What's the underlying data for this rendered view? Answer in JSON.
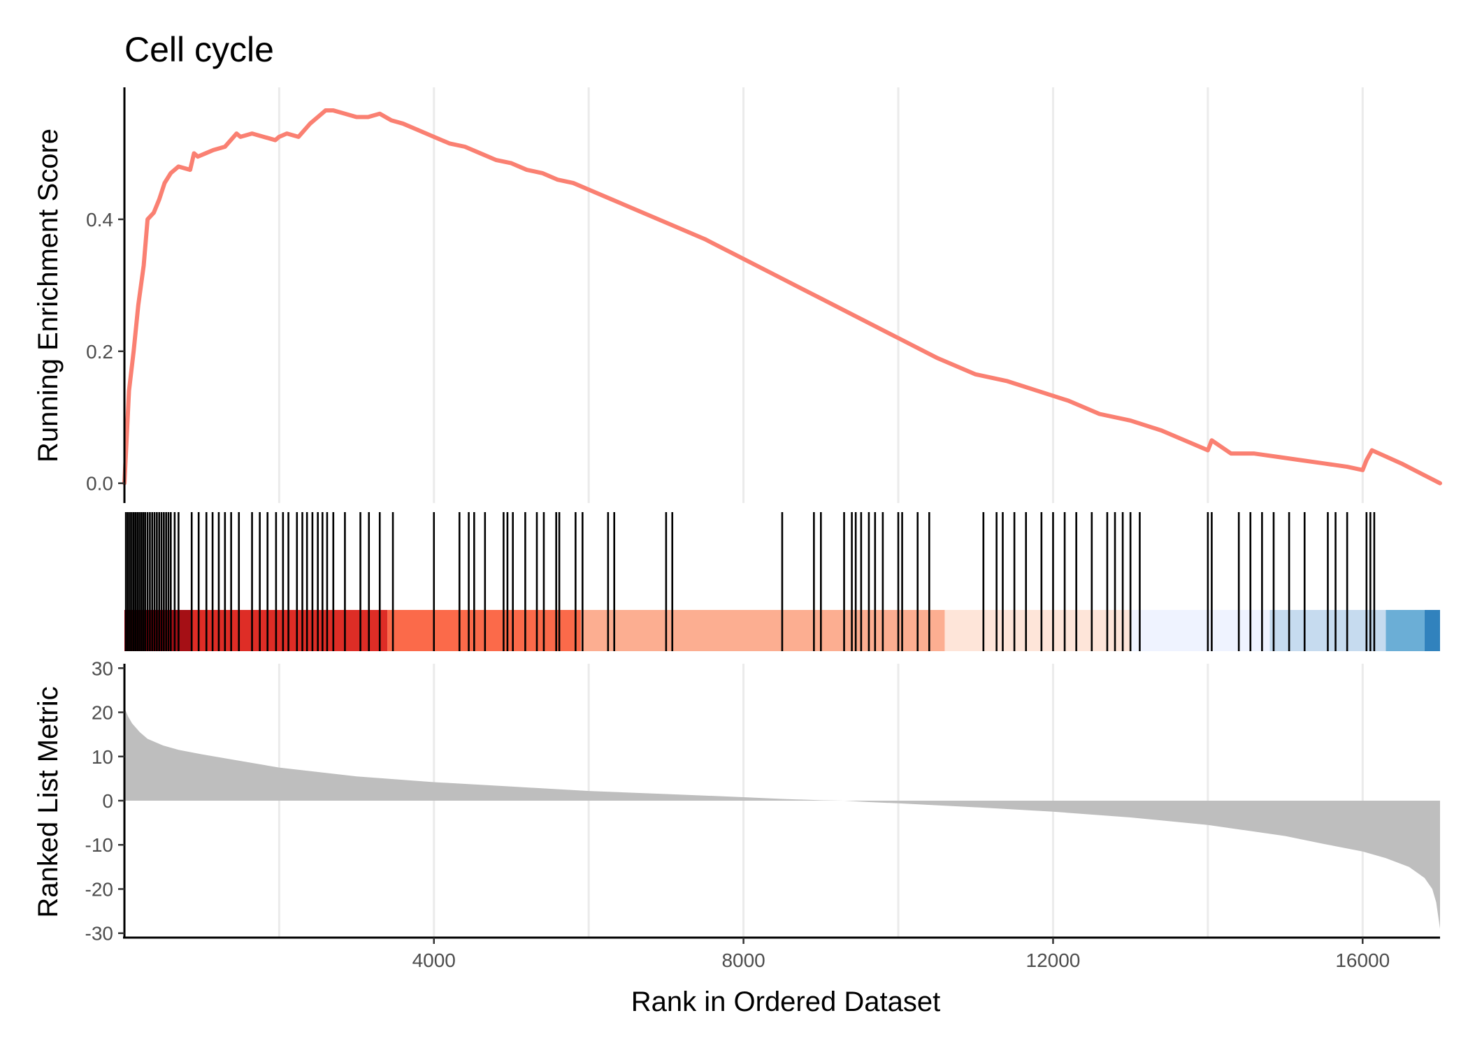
{
  "chart_data": {
    "type": "line",
    "title": "Cell cycle",
    "xlabel": "Rank in Ordered Dataset",
    "xlim": [
      1,
      17000
    ],
    "x_ticks": [
      4000,
      8000,
      12000,
      16000
    ],
    "x_tick_labels": [
      "4000",
      "8000",
      "12000",
      "16000"
    ],
    "vertical_grid": true,
    "es_panel": {
      "ylabel": "Running Enrichment Score",
      "ylim": [
        -0.03,
        0.6
      ],
      "y_ticks": [
        0.0,
        0.2,
        0.4
      ],
      "y_tick_labels": [
        "0.0",
        "0.2",
        "0.4"
      ],
      "line_color": "#FA8072",
      "series": [
        {
          "x": [
            1,
            60,
            120,
            180,
            250,
            300,
            380,
            450,
            520,
            600,
            700,
            850,
            900,
            950,
            1050,
            1150,
            1300,
            1450,
            1500,
            1650,
            1800,
            1950,
            2000,
            2100,
            2250,
            2400,
            2500,
            2600,
            2700,
            2850,
            3000,
            3150,
            3300,
            3450,
            3600,
            3800,
            4000,
            4200,
            4400,
            4600,
            4800,
            5000,
            5200,
            5400,
            5600,
            5800,
            6000,
            6300,
            6600,
            7000,
            7500,
            8000,
            8500,
            9000,
            9500,
            10000,
            10500,
            11000,
            11400,
            11800,
            12200,
            12600,
            13000,
            13400,
            13800,
            14000,
            14050,
            14300,
            14600,
            14900,
            15200,
            15500,
            15800,
            16000,
            16050,
            16120,
            16500,
            17000
          ],
          "y": [
            0.0,
            0.14,
            0.2,
            0.27,
            0.33,
            0.4,
            0.41,
            0.43,
            0.455,
            0.47,
            0.48,
            0.475,
            0.5,
            0.495,
            0.5,
            0.505,
            0.51,
            0.53,
            0.525,
            0.53,
            0.525,
            0.52,
            0.525,
            0.53,
            0.525,
            0.545,
            0.555,
            0.565,
            0.565,
            0.56,
            0.555,
            0.555,
            0.56,
            0.55,
            0.545,
            0.535,
            0.525,
            0.515,
            0.51,
            0.5,
            0.49,
            0.485,
            0.475,
            0.47,
            0.46,
            0.455,
            0.445,
            0.43,
            0.415,
            0.395,
            0.37,
            0.34,
            0.31,
            0.28,
            0.25,
            0.22,
            0.19,
            0.165,
            0.155,
            0.14,
            0.125,
            0.105,
            0.095,
            0.08,
            0.06,
            0.05,
            0.065,
            0.045,
            0.045,
            0.04,
            0.035,
            0.03,
            0.025,
            0.02,
            0.035,
            0.05,
            0.03,
            0.0
          ]
        }
      ]
    },
    "hits_panel": {
      "positions": [
        20,
        45,
        70,
        95,
        120,
        145,
        170,
        195,
        220,
        245,
        270,
        300,
        330,
        360,
        390,
        420,
        450,
        480,
        510,
        540,
        570,
        600,
        650,
        700,
        870,
        960,
        1060,
        1140,
        1220,
        1300,
        1380,
        1480,
        1650,
        1750,
        1850,
        1960,
        2050,
        2120,
        2230,
        2300,
        2360,
        2430,
        2500,
        2560,
        2620,
        2700,
        2850,
        3050,
        3160,
        3300,
        3470,
        4000,
        4330,
        4450,
        4520,
        4660,
        4900,
        4950,
        5020,
        5180,
        5330,
        5420,
        5580,
        5620,
        5830,
        5920,
        6250,
        6330,
        7000,
        7080,
        8500,
        8910,
        9000,
        9300,
        9400,
        9450,
        9520,
        9620,
        9700,
        9800,
        10000,
        10050,
        10250,
        10400,
        11100,
        11270,
        11350,
        11500,
        11650,
        11850,
        12000,
        12150,
        12300,
        12500,
        12700,
        12800,
        12900,
        13000,
        13120,
        14000,
        14050,
        14400,
        14550,
        14700,
        14850,
        15050,
        15250,
        15550,
        15650,
        15800,
        16050,
        16100,
        16150
      ],
      "color_bins": [
        {
          "start": 1,
          "end": 520,
          "color": "#99000D"
        },
        {
          "start": 520,
          "end": 880,
          "color": "#A50F15"
        },
        {
          "start": 880,
          "end": 3400,
          "color": "#DE2D26"
        },
        {
          "start": 3400,
          "end": 5900,
          "color": "#FB6A4A"
        },
        {
          "start": 5900,
          "end": 10600,
          "color": "#FCAE91"
        },
        {
          "start": 10600,
          "end": 13000,
          "color": "#FEE5D9"
        },
        {
          "start": 13000,
          "end": 14800,
          "color": "#EFF3FF"
        },
        {
          "start": 14800,
          "end": 16300,
          "color": "#C6DBEF"
        },
        {
          "start": 16300,
          "end": 16800,
          "color": "#6BAED6"
        },
        {
          "start": 16800,
          "end": 17000,
          "color": "#3182BD"
        }
      ]
    },
    "metric_panel": {
      "ylabel": "Ranked List Metric",
      "ylim": [
        -31,
        31
      ],
      "y_ticks": [
        30,
        20,
        10,
        0,
        -10,
        -20,
        -30
      ],
      "y_tick_labels": [
        "30",
        "20",
        "10",
        "0",
        "-10",
        "-20",
        "-30"
      ],
      "fill_color": "#BEBEBE",
      "x": [
        1,
        50,
        100,
        200,
        300,
        500,
        700,
        1000,
        1500,
        2000,
        3000,
        4000,
        5000,
        6000,
        7000,
        8000,
        8500,
        9000,
        9300,
        9600,
        10000,
        11000,
        12000,
        13000,
        14000,
        15000,
        15500,
        16000,
        16300,
        16600,
        16800,
        16900,
        16950,
        17000
      ],
      "values": [
        21,
        19,
        17.5,
        15.5,
        14,
        12.5,
        11.5,
        10.5,
        9,
        7.5,
        5.5,
        4.2,
        3.2,
        2.2,
        1.5,
        0.8,
        0.4,
        0.1,
        0,
        -0.3,
        -0.6,
        -1.5,
        -2.5,
        -3.8,
        -5.5,
        -8,
        -9.8,
        -11.5,
        -13,
        -15,
        -17.5,
        -20,
        -23,
        -29
      ]
    }
  }
}
